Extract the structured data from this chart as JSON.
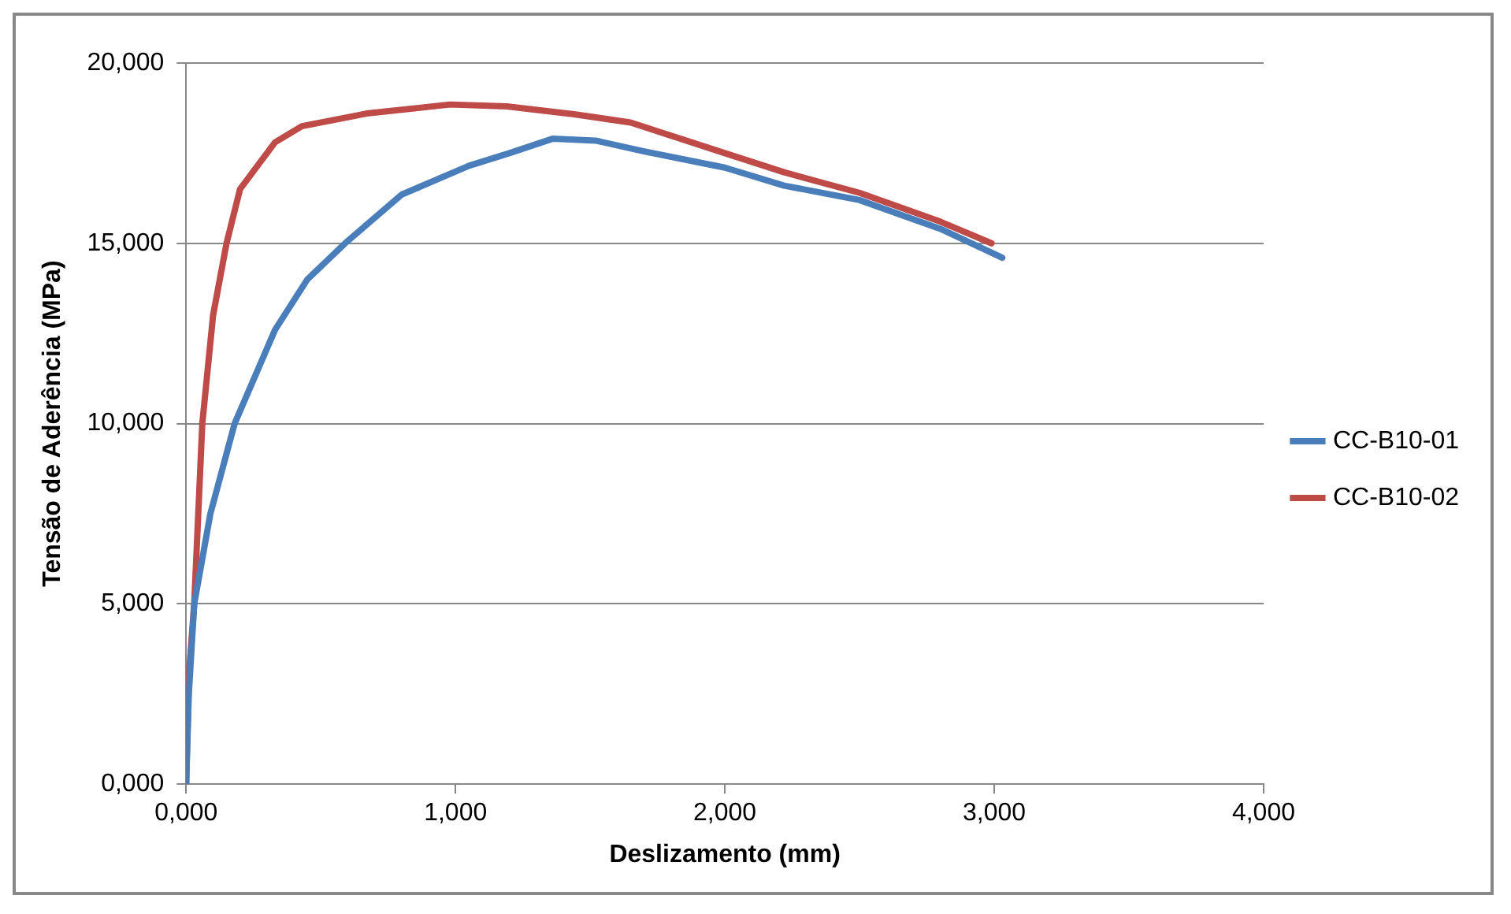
{
  "chart_data": {
    "type": "line",
    "xlabel": "Deslizamento (mm)",
    "ylabel": "Tensão de Aderência (MPa)",
    "xlim": [
      0,
      4
    ],
    "xticks": [
      {
        "value": 0,
        "label": "0,000"
      },
      {
        "value": 1,
        "label": "1,000"
      },
      {
        "value": 2,
        "label": "2,000"
      },
      {
        "value": 3,
        "label": "3,000"
      },
      {
        "value": 4,
        "label": "4,000"
      }
    ],
    "ylim": [
      0,
      20
    ],
    "yticks": [
      {
        "value": 0,
        "label": "0,000"
      },
      {
        "value": 5,
        "label": "5,000"
      },
      {
        "value": 10,
        "label": "10,000"
      },
      {
        "value": 15,
        "label": "15,000"
      },
      {
        "value": 20,
        "label": "20,000"
      }
    ],
    "grid": "y",
    "legend": "right",
    "marker": "none",
    "line_style": "solid",
    "series": [
      {
        "name": "CC-B10-01",
        "color": "#4a7ebb",
        "x": [
          0,
          0.01,
          0.03,
          0.09,
          0.18,
          0.33,
          0.45,
          0.59,
          0.8,
          1.05,
          1.2,
          1.36,
          1.52,
          1.7,
          2.0,
          2.22,
          2.5,
          2.8,
          3.03
        ],
        "values": [
          0,
          2.5,
          5,
          7.5,
          10,
          12.6,
          14,
          15,
          16.35,
          17.15,
          17.5,
          17.9,
          17.85,
          17.55,
          17.1,
          16.6,
          16.2,
          15.4,
          14.6
        ]
      },
      {
        "name": "CC-B10-02",
        "color": "#be4b48",
        "x": [
          0,
          0.01,
          0.03,
          0.06,
          0.1,
          0.15,
          0.2,
          0.33,
          0.43,
          0.67,
          0.98,
          1.19,
          1.44,
          1.65,
          2.0,
          2.22,
          2.5,
          2.8,
          2.99
        ],
        "values": [
          0,
          3,
          5,
          10,
          13,
          15,
          16.5,
          17.8,
          18.25,
          18.6,
          18.85,
          18.8,
          18.58,
          18.35,
          17.5,
          16.97,
          16.4,
          15.6,
          15.0
        ]
      }
    ]
  }
}
